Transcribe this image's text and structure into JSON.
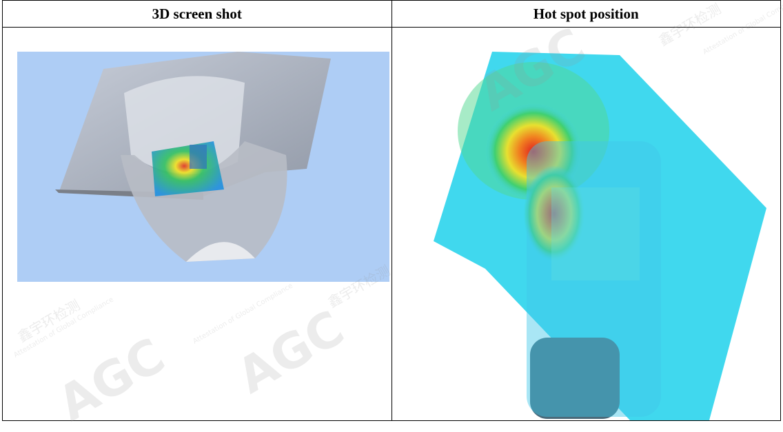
{
  "table": {
    "headers": [
      "3D screen shot",
      "Hot spot position"
    ]
  },
  "watermark": {
    "logo": "AGC",
    "chinese": "鑫宇环检测",
    "english": "Attestation of Global Compliance"
  }
}
